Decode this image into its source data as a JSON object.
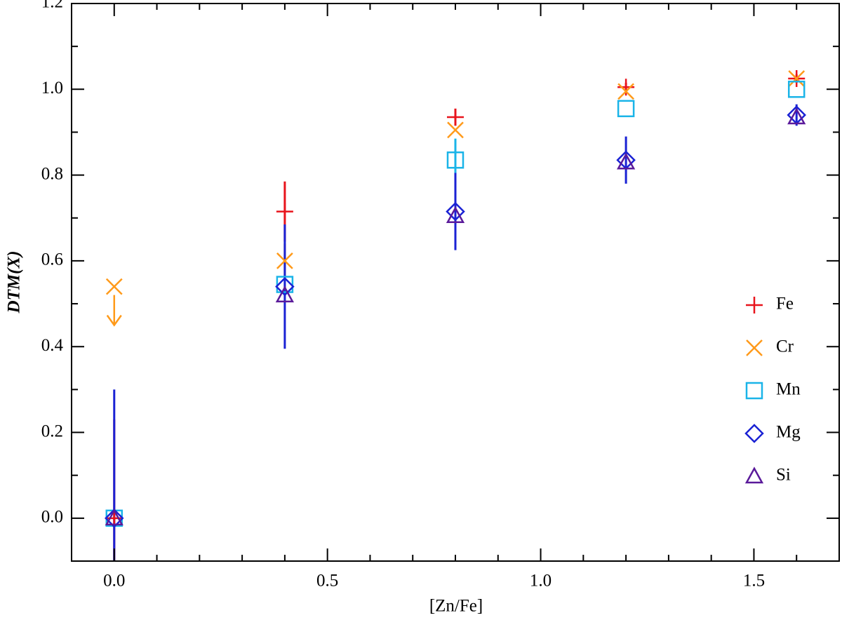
{
  "chart_data": {
    "type": "scatter",
    "xlabel": "[Zn/Fe]",
    "ylabel": "DTM(X)",
    "xlim": [
      -0.1,
      1.7
    ],
    "ylim": [
      -0.1,
      1.2
    ],
    "xticks": [
      {
        "value": 0,
        "label": "0.0"
      },
      0.5,
      {
        "value": 1,
        "label": "1.0"
      },
      1.5
    ],
    "yticks": [
      {
        "value": 0,
        "label": "0.0"
      },
      0.2,
      0.4,
      0.6,
      0.8,
      {
        "value": 1,
        "label": "1.0"
      },
      1.2
    ],
    "minor_xticks": [
      -0.1,
      0.1,
      0.2,
      0.3,
      0.4,
      0.6,
      0.7,
      0.8,
      0.9,
      1.1,
      1.2,
      1.3,
      1.4,
      1.6,
      1.7
    ],
    "minor_yticks": [
      -0.1,
      0.1,
      0.3,
      0.5,
      0.7,
      0.9,
      1.1
    ],
    "legend": "right",
    "x": [
      0,
      0.4,
      0.8,
      1.2,
      1.6
    ],
    "series": [
      {
        "name": "Fe",
        "color": "#e8141c",
        "marker": "plus",
        "values": [
          0,
          0.715,
          0.935,
          1.005,
          1.025
        ],
        "errors": [
          0.23,
          0.07,
          0.02,
          0.01,
          0.01
        ]
      },
      {
        "name": "Cr",
        "color": "#ff9a1a",
        "marker": "cross",
        "values": [
          0.54,
          0.6,
          0.905,
          0.995,
          1.025
        ],
        "errors": [
          null,
          0.04,
          null,
          null,
          null
        ],
        "upper_limits": [
          true,
          false,
          false,
          false,
          false
        ]
      },
      {
        "name": "Mn",
        "color": "#1ab4e8",
        "marker": "square",
        "values": [
          0,
          0.545,
          0.835,
          0.955,
          1.0
        ],
        "errors": [
          null,
          null,
          0.05,
          null,
          null
        ]
      },
      {
        "name": "Mg",
        "color": "#1a22d4",
        "marker": "diamond",
        "values": [
          0,
          0.54,
          0.715,
          0.835,
          0.94
        ],
        "errors": [
          0.3,
          0.145,
          0.09,
          0.055,
          0.025
        ]
      },
      {
        "name": "Si",
        "color": "#5a1a9a",
        "marker": "triangle",
        "values": [
          0,
          0.52,
          0.705,
          0.83,
          0.935
        ],
        "errors": [
          null,
          null,
          null,
          null,
          null
        ]
      }
    ]
  }
}
